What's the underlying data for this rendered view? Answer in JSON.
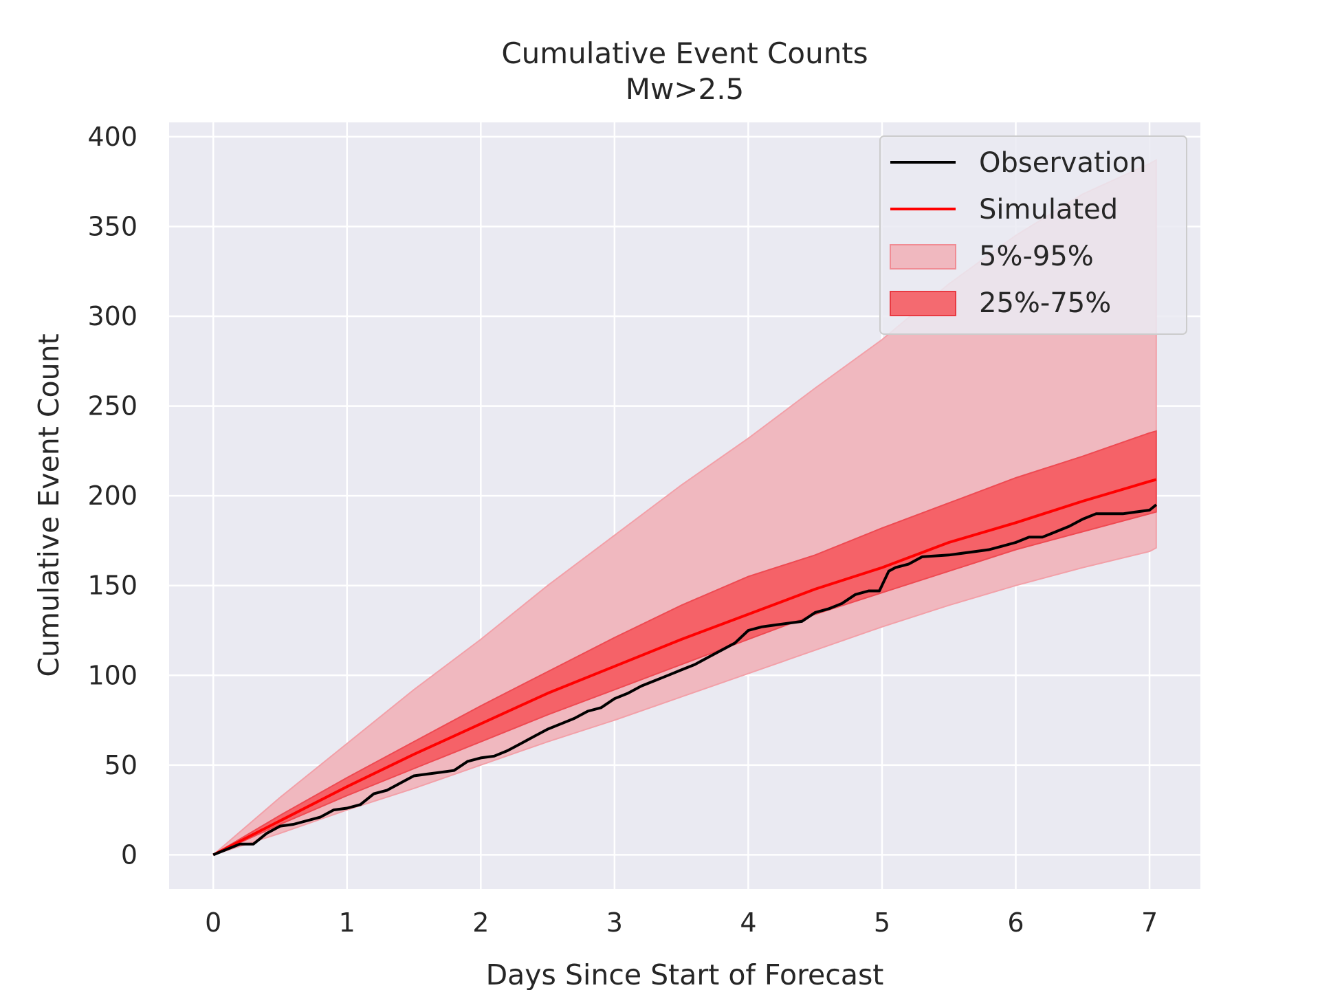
{
  "chart_data": {
    "type": "line",
    "title": "Cumulative Event Counts",
    "subtitle": "Mw>2.5",
    "xlabel": "Days Since Start of Forecast",
    "ylabel": "Cumulative Event Count",
    "xlim": [
      -0.33,
      7.38
    ],
    "ylim": [
      -19,
      408
    ],
    "xticks": [
      0,
      1,
      2,
      3,
      4,
      5,
      6,
      7
    ],
    "yticks": [
      0,
      50,
      100,
      150,
      200,
      250,
      300,
      350,
      400
    ],
    "grid": true,
    "legend_position": "top-right",
    "colors": {
      "background": "#eaeaf2",
      "grid": "#ffffff",
      "observation": "#000000",
      "simulated": "#ff0000",
      "band_outer": "#f0b8bf",
      "band_inner": "#f45d63"
    },
    "legend": [
      "Observation",
      "Simulated",
      "5%-95%",
      "25%-75%"
    ],
    "bands": [
      {
        "name": "5%-95%",
        "x": [
          0,
          0.5,
          1,
          1.5,
          2,
          2.5,
          3,
          3.5,
          4,
          4.5,
          5,
          5.5,
          6,
          6.5,
          7,
          7.05
        ],
        "lower": [
          0,
          12,
          25,
          37,
          50,
          63,
          75,
          88,
          101,
          114,
          127,
          139,
          150,
          160,
          169,
          171
        ],
        "upper": [
          0,
          32,
          62,
          92,
          120,
          150,
          178,
          206,
          232,
          260,
          287,
          318,
          345,
          368,
          385,
          387
        ]
      },
      {
        "name": "25%-75%",
        "x": [
          0,
          0.5,
          1,
          1.5,
          2,
          2.5,
          3,
          3.5,
          4,
          4.5,
          5,
          5.5,
          6,
          6.5,
          7,
          7.05
        ],
        "lower": [
          0,
          17,
          33,
          48,
          63,
          78,
          92,
          106,
          120,
          134,
          146,
          158,
          170,
          180,
          190,
          191
        ],
        "upper": [
          0,
          22,
          43,
          63,
          83,
          102,
          121,
          139,
          155,
          167,
          182,
          196,
          210,
          222,
          235,
          236
        ]
      }
    ],
    "series": [
      {
        "name": "Simulated",
        "x": [
          0,
          0.5,
          1,
          1.5,
          2,
          2.5,
          3,
          3.5,
          4,
          4.5,
          5,
          5.5,
          6,
          6.5,
          7,
          7.05
        ],
        "values": [
          0,
          19,
          38,
          56,
          73,
          90,
          105,
          120,
          134,
          148,
          160,
          174,
          185,
          197,
          208,
          209
        ]
      },
      {
        "name": "Observation",
        "x": [
          0,
          0.2,
          0.3,
          0.4,
          0.5,
          0.6,
          0.8,
          0.9,
          1.0,
          1.1,
          1.2,
          1.3,
          1.4,
          1.5,
          1.6,
          1.8,
          1.9,
          2.0,
          2.1,
          2.2,
          2.3,
          2.4,
          2.5,
          2.6,
          2.7,
          2.8,
          2.9,
          3.0,
          3.1,
          3.2,
          3.3,
          3.4,
          3.5,
          3.6,
          3.7,
          3.8,
          3.9,
          4.0,
          4.1,
          4.2,
          4.4,
          4.5,
          4.6,
          4.7,
          4.8,
          4.9,
          4.98,
          5.05,
          5.1,
          5.2,
          5.3,
          5.5,
          5.7,
          5.8,
          5.9,
          6.0,
          6.1,
          6.2,
          6.3,
          6.4,
          6.5,
          6.6,
          6.7,
          6.8,
          6.9,
          7.0,
          7.05
        ],
        "values": [
          0,
          6,
          6,
          12,
          16,
          17,
          21,
          25,
          26,
          28,
          34,
          36,
          40,
          44,
          45,
          47,
          52,
          54,
          55,
          58,
          62,
          66,
          70,
          73,
          76,
          80,
          82,
          87,
          90,
          94,
          97,
          100,
          103,
          106,
          110,
          114,
          118,
          125,
          127,
          128,
          130,
          135,
          137,
          140,
          145,
          147,
          147,
          158,
          160,
          162,
          166,
          167,
          169,
          170,
          172,
          174,
          177,
          177,
          180,
          183,
          187,
          190,
          190,
          190,
          191,
          192,
          195
        ]
      }
    ]
  }
}
